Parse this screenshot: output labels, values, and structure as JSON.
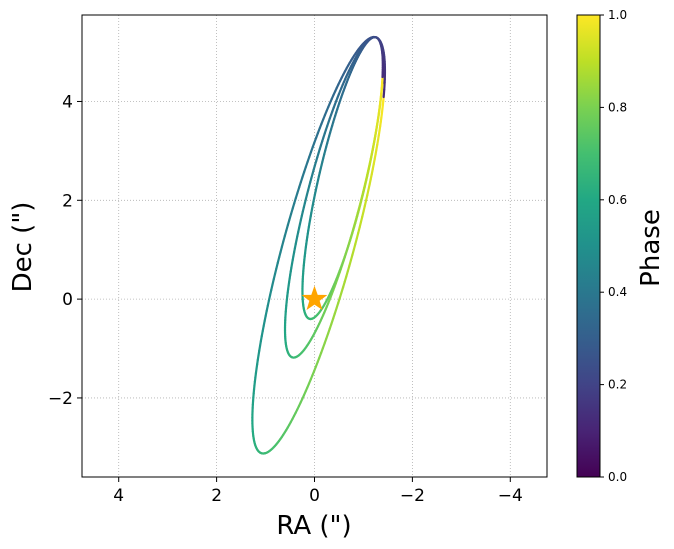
{
  "chart_data": {
    "type": "line",
    "title": "",
    "xlabel": "RA (\")",
    "ylabel": "Dec (\")",
    "xlim": [
      4.75,
      -4.75
    ],
    "ylim": [
      -3.6,
      5.75
    ],
    "x_ticks": [
      4,
      2,
      0,
      -2,
      -4
    ],
    "x_tick_labels": [
      "4",
      "2",
      "0",
      "−2",
      "−4"
    ],
    "y_ticks": [
      -2,
      0,
      2,
      4
    ],
    "y_tick_labels": [
      "−2",
      "0",
      "2",
      "4"
    ],
    "grid": true,
    "colorbar": {
      "label": "Phase",
      "range": [
        0,
        1
      ],
      "ticks": [
        0.0,
        0.2,
        0.4,
        0.6,
        0.8,
        1.0
      ],
      "tick_labels": [
        "0.0",
        "0.2",
        "0.4",
        "0.6",
        "0.8",
        "1.0"
      ],
      "colormap": "viridis"
    },
    "star": {
      "x": 0,
      "y": 0,
      "marker": "star",
      "color": "#FFA500"
    },
    "orbits": [
      {
        "periastron": [
          1.08,
          -3.12
        ],
        "apastron": [
          -1.25,
          5.3
        ]
      },
      {
        "periastron": [
          0.45,
          -1.18
        ],
        "apastron": [
          -1.25,
          5.3
        ]
      },
      {
        "periastron": [
          0.1,
          -0.4
        ],
        "apastron": [
          -1.25,
          5.3
        ]
      }
    ]
  }
}
